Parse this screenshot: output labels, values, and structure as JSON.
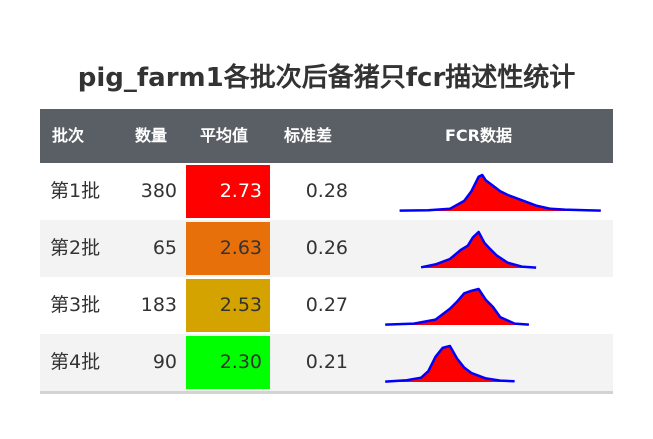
{
  "title": "pig_farm1各批次后备猪只fcr描述性统计",
  "headers": {
    "batch": "批次",
    "count": "数量",
    "mean": "平均值",
    "sd": "标准差",
    "fcr": "FCR数据"
  },
  "colors": {
    "header_bg": "#5a5f66",
    "mean_fill": [
      "#ff0000",
      "#e8700a",
      "#d4a300",
      "#00ff00"
    ],
    "spark_fill": "#ff0000",
    "spark_line": "#0000ff"
  },
  "chart_data": {
    "type": "table",
    "rows": [
      {
        "batch": "第1批",
        "count": "380",
        "mean": "2.73",
        "sd": "0.28",
        "density": {
          "x": [
            1.6,
            2.0,
            2.3,
            2.5,
            2.6,
            2.7,
            2.75,
            2.8,
            2.9,
            3.0,
            3.1,
            3.3,
            3.5,
            3.7,
            3.9,
            4.2,
            4.4
          ],
          "y": [
            0.01,
            0.02,
            0.06,
            0.28,
            0.55,
            0.95,
            1.0,
            0.85,
            0.7,
            0.55,
            0.45,
            0.3,
            0.15,
            0.06,
            0.04,
            0.02,
            0.01
          ]
        }
      },
      {
        "batch": "第2批",
        "count": "65",
        "mean": "2.63",
        "sd": "0.26",
        "density": {
          "x": [
            1.9,
            2.1,
            2.3,
            2.45,
            2.55,
            2.62,
            2.7,
            2.78,
            2.85,
            2.95,
            3.1,
            3.3,
            3.5
          ],
          "y": [
            0.02,
            0.1,
            0.25,
            0.5,
            0.62,
            0.85,
            1.0,
            0.7,
            0.55,
            0.35,
            0.15,
            0.04,
            0.01
          ]
        }
      },
      {
        "batch": "第3批",
        "count": "183",
        "mean": "2.53",
        "sd": "0.27",
        "density": {
          "x": [
            1.4,
            1.8,
            2.1,
            2.3,
            2.4,
            2.5,
            2.6,
            2.7,
            2.8,
            2.9,
            3.0,
            3.2,
            3.4
          ],
          "y": [
            0.01,
            0.04,
            0.15,
            0.45,
            0.65,
            0.88,
            0.95,
            1.0,
            0.7,
            0.5,
            0.22,
            0.04,
            0.01
          ]
        }
      },
      {
        "batch": "第4批",
        "count": "90",
        "mean": "2.30",
        "sd": "0.21",
        "density": {
          "x": [
            1.4,
            1.7,
            1.9,
            2.0,
            2.1,
            2.2,
            2.3,
            2.4,
            2.5,
            2.6,
            2.8,
            3.0,
            3.2
          ],
          "y": [
            0.01,
            0.05,
            0.12,
            0.3,
            0.7,
            0.95,
            1.0,
            0.65,
            0.4,
            0.25,
            0.1,
            0.04,
            0.02
          ]
        }
      }
    ]
  }
}
